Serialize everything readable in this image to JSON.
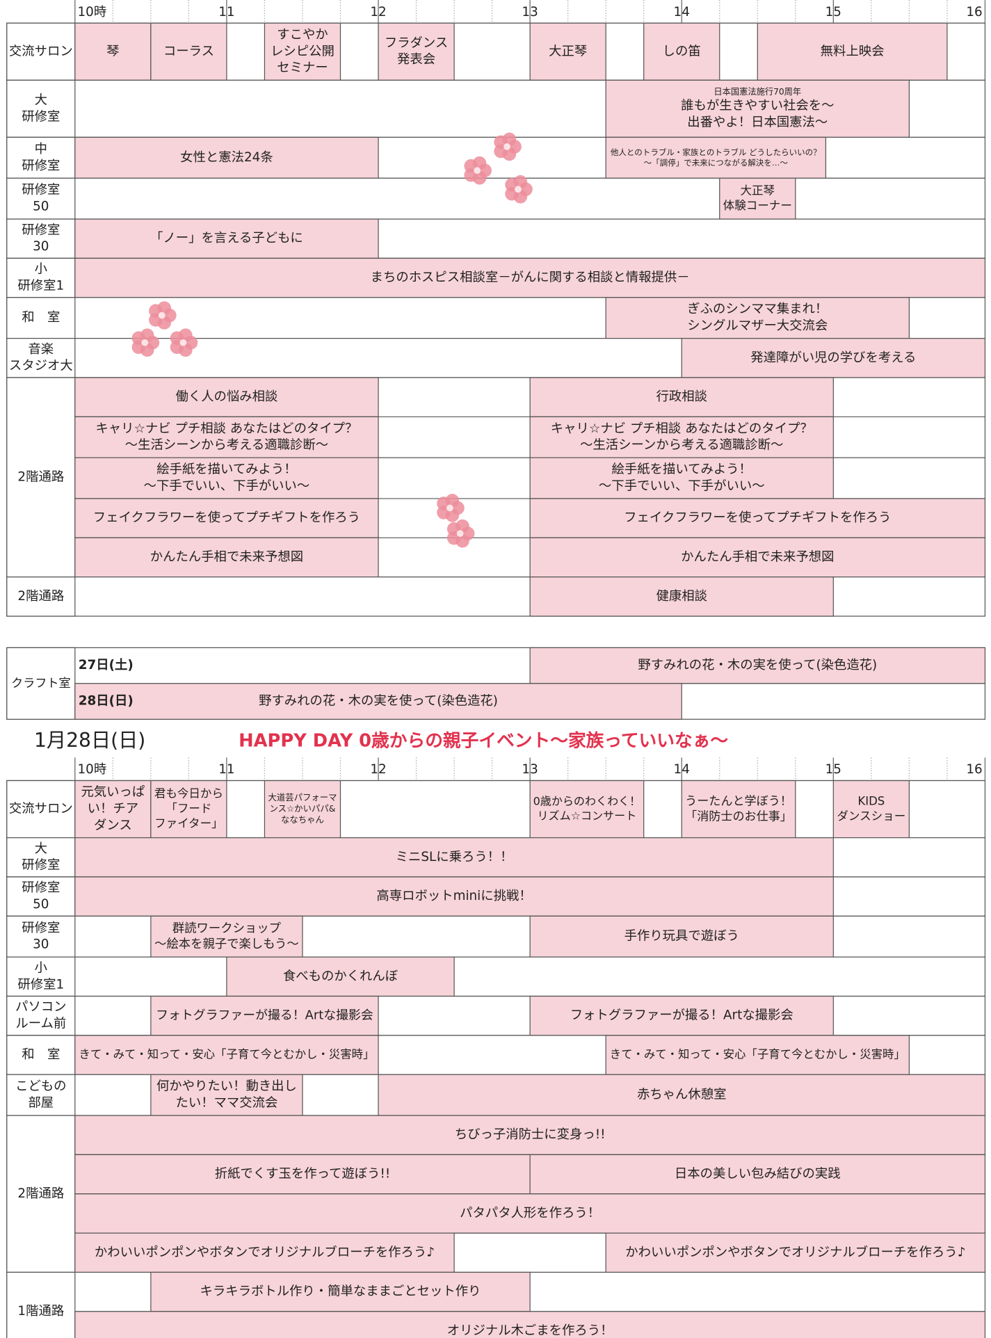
{
  "time_axis": {
    "range": [
      10,
      16
    ],
    "ticks": [
      {
        "value": 10,
        "label": "10時"
      },
      11,
      12,
      13,
      14,
      15,
      16
    ]
  },
  "schedule_1": {
    "rooms": [
      {
        "room": [
          "交流サロン"
        ],
        "lanes": [
          [
            {
              "start": 10,
              "end": 10.5,
              "text": [
                "琴"
              ]
            },
            {
              "start": 10.5,
              "end": 11,
              "text": [
                "コーラス"
              ]
            },
            {
              "start": 11.25,
              "end": 11.75,
              "text": [
                "すこやか",
                "レシピ公開",
                "セミナー"
              ]
            },
            {
              "start": 12,
              "end": 12.5,
              "text": [
                "フラダンス",
                "発表会"
              ]
            },
            {
              "start": 13,
              "end": 13.5,
              "text": [
                "大正琴"
              ]
            },
            {
              "start": 13.75,
              "end": 14.25,
              "text": [
                "しの笛"
              ]
            },
            {
              "start": 14.5,
              "end": 15.75,
              "text": [
                "無料上映会"
              ]
            }
          ]
        ]
      },
      {
        "room": [
          "大",
          "研修室"
        ],
        "lanes": [
          [
            {
              "start": 13.5,
              "end": 15.5,
              "note": "日本国憲法施行70周年",
              "text": [
                "誰もが生きやすい社会を～",
                "出番やよ！日本国憲法～"
              ]
            }
          ]
        ]
      },
      {
        "room": [
          "中",
          "研修室"
        ],
        "lanes": [
          [
            {
              "start": 10,
              "end": 12,
              "text": [
                "女性と憲法24条"
              ]
            },
            {
              "start": 13.5,
              "end": 14.95,
              "text": [
                "他人とのトラブル・家族とのトラブル どうしたらいいの？",
                "～「調停」で未来につながる解決を…～"
              ]
            }
          ]
        ]
      },
      {
        "room": [
          "研修室",
          "50"
        ],
        "lanes": [
          [
            {
              "start": 14.25,
              "end": 14.75,
              "text": [
                "大正琴",
                "体験コーナー"
              ]
            }
          ]
        ]
      },
      {
        "room": [
          "研修室",
          "30"
        ],
        "lanes": [
          [
            {
              "start": 10,
              "end": 12,
              "text": [
                "「ノー」を言える子どもに"
              ]
            }
          ]
        ]
      },
      {
        "room": [
          "小",
          "研修室1"
        ],
        "lanes": [
          [
            {
              "start": 10,
              "end": 16,
              "text": [
                "まちのホスピス相談室－がんに関する相談と情報提供－"
              ]
            }
          ]
        ]
      },
      {
        "room": [
          "和　室"
        ],
        "lanes": [
          [
            {
              "start": 13.5,
              "end": 15.5,
              "text": [
                "ぎふのシンママ集まれ！",
                "シングルマザー大交流会"
              ]
            }
          ]
        ]
      },
      {
        "room": [
          "音楽",
          "スタジオ大"
        ],
        "lanes": [
          [
            {
              "start": 14,
              "end": 16,
              "text": [
                "発達障がい児の学びを考える"
              ]
            }
          ]
        ]
      },
      {
        "room": [
          "2階通路"
        ],
        "lanes": [
          [
            {
              "start": 10,
              "end": 12,
              "text": [
                "働く人の悩み相談"
              ]
            },
            {
              "start": 13,
              "end": 15,
              "text": [
                "行政相談"
              ]
            }
          ],
          [
            {
              "start": 10,
              "end": 12,
              "text": [
                "キャリ☆ナビ プチ相談 あなたはどのタイプ？",
                "～生活シーンから考える適職診断～"
              ]
            },
            {
              "start": 13,
              "end": 15,
              "text": [
                "キャリ☆ナビ プチ相談 あなたはどのタイプ？",
                "～生活シーンから考える適職診断～"
              ]
            }
          ],
          [
            {
              "start": 10,
              "end": 12,
              "text": [
                "絵手紙を描いてみよう！",
                "～下手でいい、下手がいい～"
              ]
            },
            {
              "start": 13,
              "end": 15,
              "text": [
                "絵手紙を描いてみよう！",
                "～下手でいい、下手がいい～"
              ]
            }
          ],
          [
            {
              "start": 10,
              "end": 12,
              "text": [
                "フェイクフラワーを使ってプチギフトを作ろう"
              ]
            },
            {
              "start": 13,
              "end": 16,
              "text": [
                "フェイクフラワーを使ってプチギフトを作ろう"
              ]
            }
          ],
          [
            {
              "start": 10,
              "end": 12,
              "text": [
                "かんたん手相で未来予想図"
              ]
            },
            {
              "start": 13,
              "end": 16,
              "text": [
                "かんたん手相で未来予想図"
              ]
            }
          ]
        ]
      },
      {
        "room": [
          "2階通路"
        ],
        "lanes": [
          [
            {
              "start": 13,
              "end": 15,
              "text": [
                "健康相談"
              ]
            }
          ]
        ]
      }
    ]
  },
  "craft": {
    "room": "クラフト室",
    "days": [
      {
        "day": "27日(土)",
        "events": [
          {
            "start": 13,
            "end": 16,
            "text": [
              "野すみれの花・木の実を使って(染色造花)"
            ]
          }
        ]
      },
      {
        "day": "28日(日)",
        "events": [
          {
            "start": 10,
            "end": 14,
            "text": [
              "野すみれの花・木の実を使って(染色造花)"
            ]
          }
        ]
      }
    ]
  },
  "schedule_2": {
    "date": "1月28日(日)",
    "theme": "HAPPY DAY  0歳からの親子イベント～家族っていいなぁ～",
    "rooms": [
      {
        "room": [
          "交流サロン"
        ],
        "lanes": [
          [
            {
              "start": 10,
              "end": 10.5,
              "text": [
                "元気いっぱ",
                "い！チア",
                "ダンス"
              ]
            },
            {
              "start": 10.5,
              "end": 11,
              "text": [
                "君も今日から",
                "「フード",
                "ファイター」"
              ]
            },
            {
              "start": 11.25,
              "end": 11.75,
              "text": [
                "大道芸パフォーマ",
                "ンス☆かいパパ&",
                "ななちゃん"
              ]
            },
            {
              "start": 13,
              "end": 13.75,
              "text": [
                "0歳からのわくわく！",
                "リズム☆コンサート"
              ]
            },
            {
              "start": 14,
              "end": 14.75,
              "text": [
                "うーたんと学ぼう！",
                "「消防士のお仕事」"
              ]
            },
            {
              "start": 15,
              "end": 15.5,
              "text": [
                "KIDS",
                "ダンスショー"
              ]
            }
          ]
        ]
      },
      {
        "room": [
          "大",
          "研修室"
        ],
        "lanes": [
          [
            {
              "start": 10,
              "end": 15,
              "text": [
                "ミニSLに乗ろう！！"
              ]
            }
          ]
        ]
      },
      {
        "room": [
          "研修室",
          "50"
        ],
        "lanes": [
          [
            {
              "start": 10,
              "end": 15,
              "text": [
                "高専ロボットminiに挑戦！"
              ]
            }
          ]
        ]
      },
      {
        "room": [
          "研修室",
          "30"
        ],
        "lanes": [
          [
            {
              "start": 10.5,
              "end": 11.5,
              "text": [
                "群読ワークショップ",
                "～絵本を親子で楽しもう～"
              ]
            },
            {
              "start": 13,
              "end": 15,
              "text": [
                "手作り玩具で遊ぼう"
              ]
            }
          ]
        ]
      },
      {
        "room": [
          "小",
          "研修室1"
        ],
        "lanes": [
          [
            {
              "start": 11,
              "end": 12.5,
              "text": [
                "食べものかくれんぼ"
              ]
            }
          ]
        ]
      },
      {
        "room": [
          "パソコン",
          "ルーム前"
        ],
        "lanes": [
          [
            {
              "start": 10.5,
              "end": 12,
              "text": [
                "フォトグラファーが撮る！Artな撮影会"
              ]
            },
            {
              "start": 13,
              "end": 15,
              "text": [
                "フォトグラファーが撮る！Artな撮影会"
              ]
            }
          ]
        ]
      },
      {
        "room": [
          "和　室"
        ],
        "lanes": [
          [
            {
              "start": 10,
              "end": 12,
              "text": [
                "きて・みて・知って・安心「子育て今とむかし・災害時」"
              ]
            },
            {
              "start": 13.5,
              "end": 15.5,
              "text": [
                "きて・みて・知って・安心「子育て今とむかし・災害時」"
              ]
            }
          ]
        ]
      },
      {
        "room": [
          "こどもの",
          "部屋"
        ],
        "lanes": [
          [
            {
              "start": 10.5,
              "end": 11.5,
              "text": [
                "何かやりたい！動き出し",
                "たい！ママ交流会"
              ]
            },
            {
              "start": 12,
              "end": 16,
              "text": [
                "赤ちゃん休憩室"
              ]
            }
          ]
        ]
      },
      {
        "room": [
          "2階通路"
        ],
        "lanes": [
          [
            {
              "start": 10,
              "end": 16,
              "text": [
                "ちびっ子消防士に変身っ!!"
              ]
            }
          ],
          [
            {
              "start": 10,
              "end": 13,
              "text": [
                "折紙でくす玉を作って遊ぼう!!"
              ]
            },
            {
              "start": 13,
              "end": 16,
              "text": [
                "日本の美しい包み結びの実践"
              ]
            }
          ],
          [
            {
              "start": 10,
              "end": 16,
              "text": [
                "パタパタ人形を作ろう！"
              ]
            }
          ],
          [
            {
              "start": 10,
              "end": 12.5,
              "text": [
                "かわいいポンポンやボタンでオリジナルブローチを作ろう♪"
              ]
            },
            {
              "start": 13.5,
              "end": 16,
              "text": [
                "かわいいポンポンやボタンでオリジナルブローチを作ろう♪"
              ]
            }
          ]
        ]
      },
      {
        "room": [
          "1階通路"
        ],
        "lanes": [
          [
            {
              "start": 10.5,
              "end": 13,
              "text": [
                "キラキラボトル作り・簡単なままごとセット作り"
              ]
            }
          ],
          [
            {
              "start": 10,
              "end": 16,
              "text": [
                "オリジナル木ごまを作ろう！"
              ]
            }
          ]
        ]
      }
    ]
  }
}
